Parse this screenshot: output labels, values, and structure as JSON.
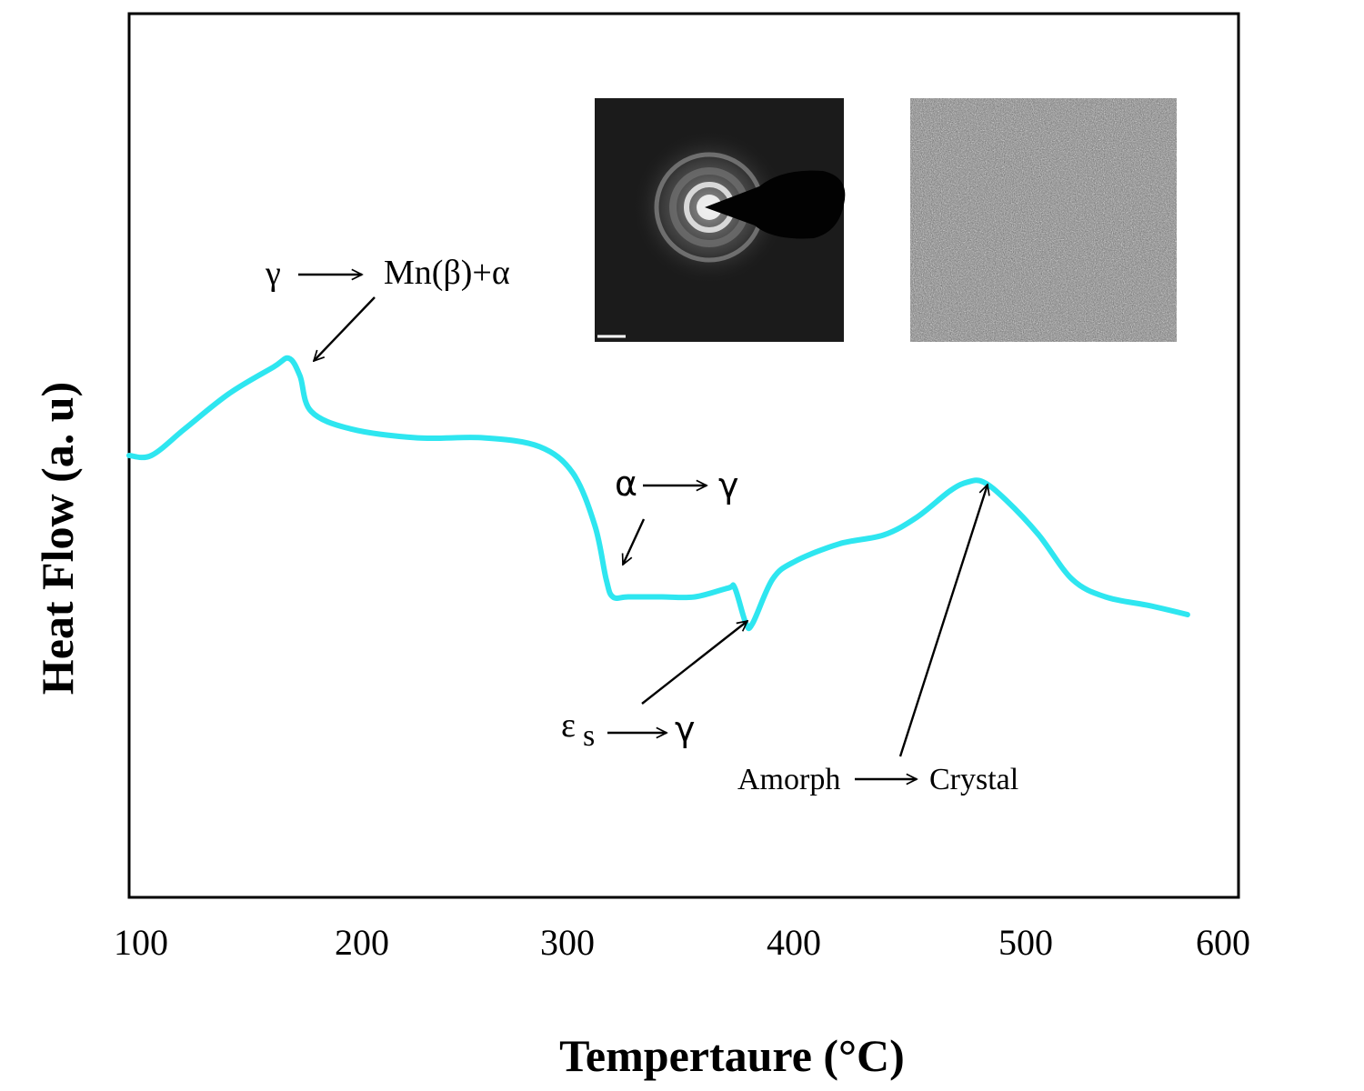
{
  "chart_data": {
    "type": "line",
    "title": "",
    "xlabel": "Tempertaure (°C)",
    "ylabel": "Heat Flow (a. u)",
    "xlim": [
      100,
      600
    ],
    "ylim": [
      0,
      1
    ],
    "x_ticks": [
      "100",
      "200",
      "300",
      "400",
      "500",
      "600"
    ],
    "y_ticks_labeled": false,
    "grid": false,
    "legend": "none",
    "series": [
      {
        "color": "#2ee6f0",
        "points": [
          [
            100,
            0.5
          ],
          [
            110,
            0.5
          ],
          [
            125,
            0.53
          ],
          [
            145,
            0.57
          ],
          [
            165,
            0.6
          ],
          [
            172,
            0.61
          ],
          [
            177,
            0.59
          ],
          [
            182,
            0.55
          ],
          [
            200,
            0.53
          ],
          [
            230,
            0.52
          ],
          [
            260,
            0.52
          ],
          [
            285,
            0.51
          ],
          [
            300,
            0.48
          ],
          [
            310,
            0.42
          ],
          [
            315,
            0.36
          ],
          [
            318,
            0.34
          ],
          [
            325,
            0.34
          ],
          [
            340,
            0.34
          ],
          [
            355,
            0.34
          ],
          [
            370,
            0.35
          ],
          [
            373,
            0.35
          ],
          [
            378,
            0.31
          ],
          [
            381,
            0.31
          ],
          [
            390,
            0.36
          ],
          [
            400,
            0.38
          ],
          [
            420,
            0.4
          ],
          [
            440,
            0.41
          ],
          [
            455,
            0.43
          ],
          [
            470,
            0.46
          ],
          [
            478,
            0.47
          ],
          [
            485,
            0.47
          ],
          [
            495,
            0.45
          ],
          [
            510,
            0.41
          ],
          [
            525,
            0.36
          ],
          [
            540,
            0.34
          ],
          [
            560,
            0.33
          ],
          [
            577,
            0.32
          ]
        ]
      }
    ],
    "annotations": [
      {
        "id": "a1",
        "pre": "γ",
        "post": "Mn(β)+α",
        "sub": "",
        "target_x": 178
      },
      {
        "id": "a2",
        "pre": "α",
        "post": "γ",
        "sub": "",
        "target_x": 322
      },
      {
        "id": "a3",
        "pre": "ε",
        "post": "γ",
        "sub": "s",
        "target_x": 380
      },
      {
        "id": "a4",
        "pre": "Amorph",
        "post": "Crystal",
        "sub": "",
        "target_x": 482
      }
    ],
    "insets": [
      {
        "id": "saed-pattern",
        "kind": "diffraction-pattern-image"
      },
      {
        "id": "hrtem-lattice",
        "kind": "lattice-image"
      }
    ]
  }
}
